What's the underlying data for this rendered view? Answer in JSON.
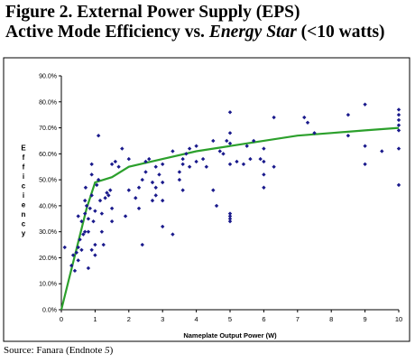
{
  "figure": {
    "title_line1": "Figure 2.  External Power Supply (EPS)",
    "title_line2_pre": "Active Mode Efficiency vs. ",
    "title_line2_em": "Energy Star",
    "title_line2_post": " (<10 watts)",
    "source_pre": "Source: Fanara (Endnote ",
    "source_em": "5",
    "source_post": ")"
  },
  "chart_data": {
    "type": "scatter",
    "xlabel": "Nameplate Output Power (W)",
    "ylabel": "Efficiency",
    "xlim": [
      0,
      10
    ],
    "ylim": [
      0,
      90
    ],
    "xticks": [
      0,
      1,
      2,
      3,
      4,
      5,
      6,
      7,
      8,
      9,
      10
    ],
    "yticks": [
      0,
      10,
      20,
      30,
      40,
      50,
      60,
      70,
      80,
      90
    ],
    "ytick_labels": [
      "0.0%",
      "10.0%",
      "20.0%",
      "30.0%",
      "40.0%",
      "50.0%",
      "60.0%",
      "70.0%",
      "80.0%",
      "90.0%"
    ],
    "grid": false,
    "legend": "none",
    "marker_color": "#1a1a8c",
    "line_color": "#2ca02c",
    "points": [
      [
        0.1,
        24
      ],
      [
        0.3,
        17
      ],
      [
        0.35,
        21
      ],
      [
        0.4,
        15
      ],
      [
        0.45,
        22
      ],
      [
        0.5,
        24
      ],
      [
        0.5,
        19
      ],
      [
        0.5,
        36
      ],
      [
        0.55,
        27
      ],
      [
        0.6,
        34
      ],
      [
        0.6,
        23
      ],
      [
        0.65,
        29
      ],
      [
        0.7,
        42
      ],
      [
        0.7,
        37
      ],
      [
        0.7,
        30
      ],
      [
        0.72,
        47
      ],
      [
        0.75,
        40
      ],
      [
        0.8,
        35
      ],
      [
        0.8,
        30
      ],
      [
        0.8,
        16
      ],
      [
        0.85,
        39
      ],
      [
        0.9,
        52
      ],
      [
        0.9,
        56
      ],
      [
        0.9,
        44
      ],
      [
        0.9,
        23
      ],
      [
        0.95,
        34
      ],
      [
        1.0,
        21
      ],
      [
        1.0,
        25
      ],
      [
        1.0,
        38
      ],
      [
        1.05,
        48
      ],
      [
        1.1,
        67
      ],
      [
        1.1,
        50
      ],
      [
        1.15,
        42
      ],
      [
        1.2,
        37
      ],
      [
        1.2,
        30
      ],
      [
        1.25,
        25
      ],
      [
        1.3,
        43
      ],
      [
        1.35,
        45
      ],
      [
        1.4,
        44
      ],
      [
        1.45,
        46
      ],
      [
        1.5,
        39
      ],
      [
        1.5,
        34
      ],
      [
        1.5,
        56
      ],
      [
        1.6,
        57
      ],
      [
        1.7,
        55
      ],
      [
        1.8,
        62
      ],
      [
        1.9,
        36
      ],
      [
        2.0,
        46
      ],
      [
        2.0,
        58
      ],
      [
        2.2,
        43
      ],
      [
        2.3,
        47
      ],
      [
        2.3,
        39
      ],
      [
        2.4,
        25
      ],
      [
        2.4,
        50
      ],
      [
        2.5,
        53
      ],
      [
        2.5,
        57
      ],
      [
        2.6,
        58
      ],
      [
        2.7,
        49
      ],
      [
        2.7,
        42
      ],
      [
        2.8,
        44
      ],
      [
        2.8,
        47
      ],
      [
        2.8,
        55
      ],
      [
        2.9,
        52
      ],
      [
        3.0,
        32
      ],
      [
        3.0,
        42
      ],
      [
        3.0,
        56
      ],
      [
        3.0,
        49
      ],
      [
        3.3,
        29
      ],
      [
        3.3,
        61
      ],
      [
        3.5,
        50
      ],
      [
        3.5,
        53
      ],
      [
        3.6,
        58
      ],
      [
        3.6,
        56
      ],
      [
        3.6,
        46
      ],
      [
        3.7,
        60
      ],
      [
        3.8,
        55
      ],
      [
        3.8,
        62
      ],
      [
        4.0,
        63
      ],
      [
        4.0,
        57
      ],
      [
        4.2,
        58
      ],
      [
        4.3,
        55
      ],
      [
        4.5,
        46
      ],
      [
        4.5,
        65
      ],
      [
        4.6,
        40
      ],
      [
        4.7,
        61
      ],
      [
        4.8,
        60
      ],
      [
        4.9,
        65
      ],
      [
        5.0,
        76
      ],
      [
        5.0,
        68
      ],
      [
        5.0,
        64
      ],
      [
        5.0,
        56
      ],
      [
        5.0,
        37
      ],
      [
        5.0,
        36
      ],
      [
        5.0,
        35
      ],
      [
        5.0,
        34
      ],
      [
        5.2,
        57
      ],
      [
        5.4,
        56
      ],
      [
        5.5,
        63
      ],
      [
        5.6,
        58
      ],
      [
        5.7,
        65
      ],
      [
        5.9,
        58
      ],
      [
        6.0,
        62
      ],
      [
        6.0,
        57
      ],
      [
        6.0,
        52
      ],
      [
        6.0,
        47
      ],
      [
        6.3,
        74
      ],
      [
        6.3,
        55
      ],
      [
        7.2,
        74
      ],
      [
        7.3,
        72
      ],
      [
        7.5,
        68
      ],
      [
        8.5,
        75
      ],
      [
        8.5,
        67
      ],
      [
        9.0,
        79
      ],
      [
        9.0,
        63
      ],
      [
        9.0,
        56
      ],
      [
        9.5,
        61
      ],
      [
        10.0,
        77
      ],
      [
        10.0,
        75
      ],
      [
        10.0,
        73
      ],
      [
        10.0,
        71
      ],
      [
        10.0,
        69
      ],
      [
        10.0,
        62
      ],
      [
        10.0,
        48
      ]
    ],
    "line": [
      [
        0,
        0
      ],
      [
        0.25,
        13
      ],
      [
        0.5,
        26
      ],
      [
        0.75,
        39
      ],
      [
        1,
        49
      ],
      [
        1.5,
        51
      ],
      [
        2,
        55
      ],
      [
        3,
        58
      ],
      [
        4,
        61
      ],
      [
        5,
        63
      ],
      [
        6,
        65
      ],
      [
        7,
        67
      ],
      [
        8,
        68
      ],
      [
        9,
        69
      ],
      [
        10,
        70
      ]
    ]
  }
}
